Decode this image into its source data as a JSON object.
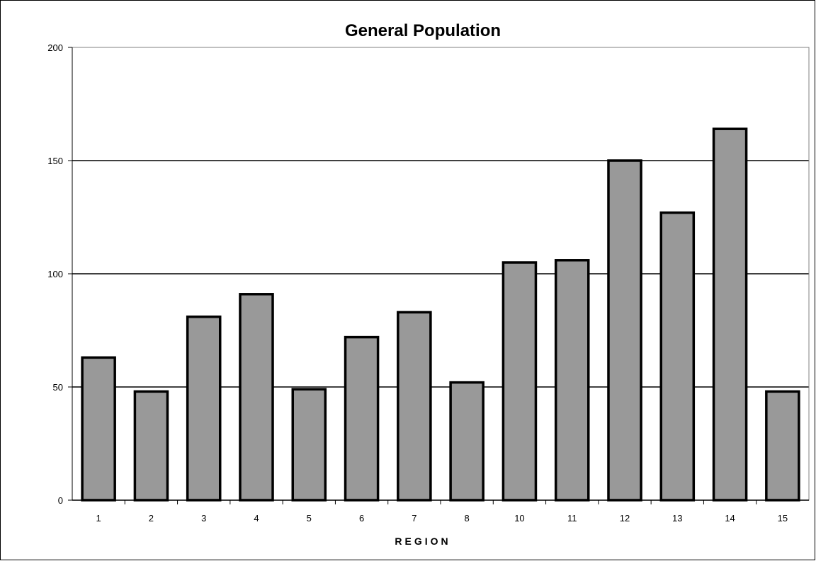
{
  "chart_data": {
    "type": "bar",
    "title": "General Population",
    "xlabel": "REGION",
    "ylabel": "",
    "categories": [
      "1",
      "2",
      "3",
      "4",
      "5",
      "6",
      "7",
      "8",
      "10",
      "11",
      "12",
      "13",
      "14",
      "15"
    ],
    "values": [
      63,
      48,
      81,
      91,
      49,
      72,
      83,
      52,
      105,
      106,
      150,
      127,
      164,
      48
    ],
    "ylim": [
      0,
      200
    ],
    "yticks": [
      0,
      50,
      100,
      150,
      200
    ],
    "grid": true,
    "legend": "none",
    "colors": {
      "bar_fill": "#999999",
      "bar_stroke": "#000000",
      "gridline": "#000000",
      "plot_border": "#808080",
      "background": "#ffffff"
    }
  }
}
